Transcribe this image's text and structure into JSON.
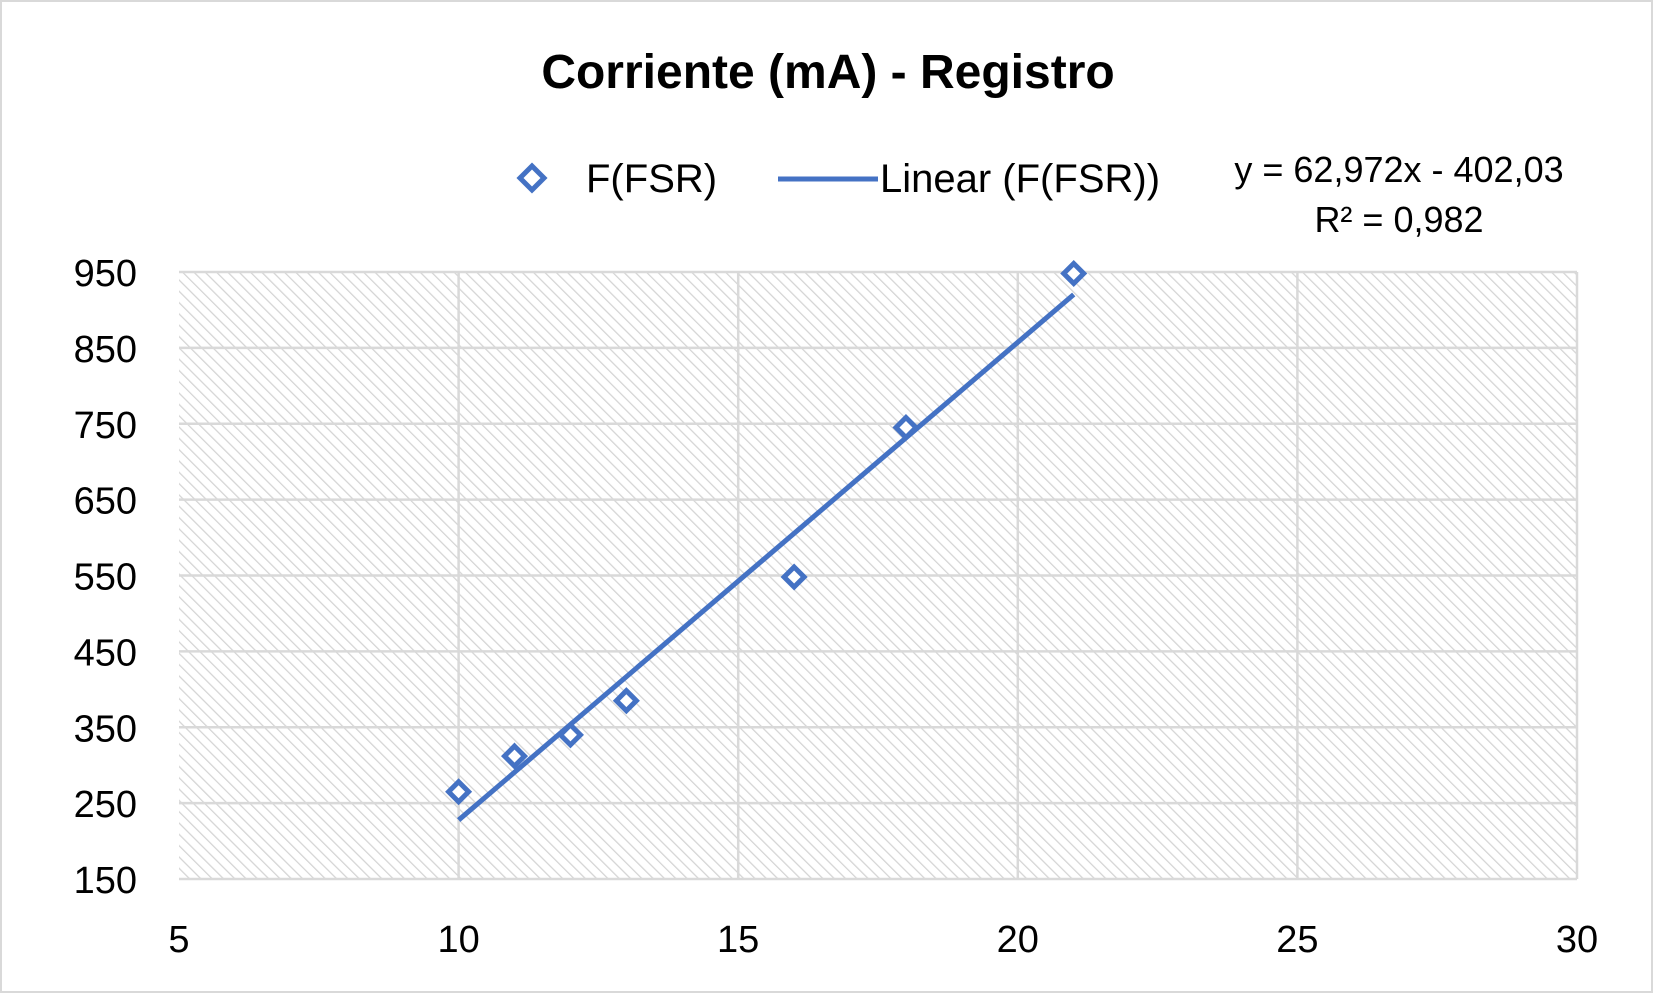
{
  "chart_data": {
    "type": "scatter",
    "title": "Corriente (mA) - Registro",
    "xlabel": "",
    "ylabel": "",
    "xlim": [
      5,
      30
    ],
    "ylim": [
      150,
      950
    ],
    "x_ticks": [
      5,
      10,
      15,
      20,
      25,
      30
    ],
    "y_ticks": [
      150,
      250,
      350,
      450,
      550,
      650,
      750,
      850,
      950
    ],
    "x_tick_labels": [
      "5",
      "10",
      "15",
      "20",
      "25",
      "30"
    ],
    "y_tick_labels": [
      "150",
      "250",
      "350",
      "450",
      "550",
      "650",
      "750",
      "850",
      "950"
    ],
    "grid": true,
    "legend_position": "top",
    "series": [
      {
        "name": "F(FSR)",
        "marker": "diamond-open",
        "color": "#4472c4",
        "points": [
          {
            "x": 10,
            "y": 265
          },
          {
            "x": 11,
            "y": 312
          },
          {
            "x": 12,
            "y": 340
          },
          {
            "x": 13,
            "y": 385
          },
          {
            "x": 16,
            "y": 548
          },
          {
            "x": 18,
            "y": 745
          },
          {
            "x": 21,
            "y": 948
          }
        ]
      }
    ],
    "trendline": {
      "name": "Linear (F(FSR))",
      "type": "linear",
      "color": "#4472c4",
      "slope": 62.972,
      "intercept": -402.03,
      "x_range": [
        10,
        21
      ],
      "equation_label": "y = 62,972x - 402,03",
      "r2_label": "R² = 0,982"
    }
  }
}
